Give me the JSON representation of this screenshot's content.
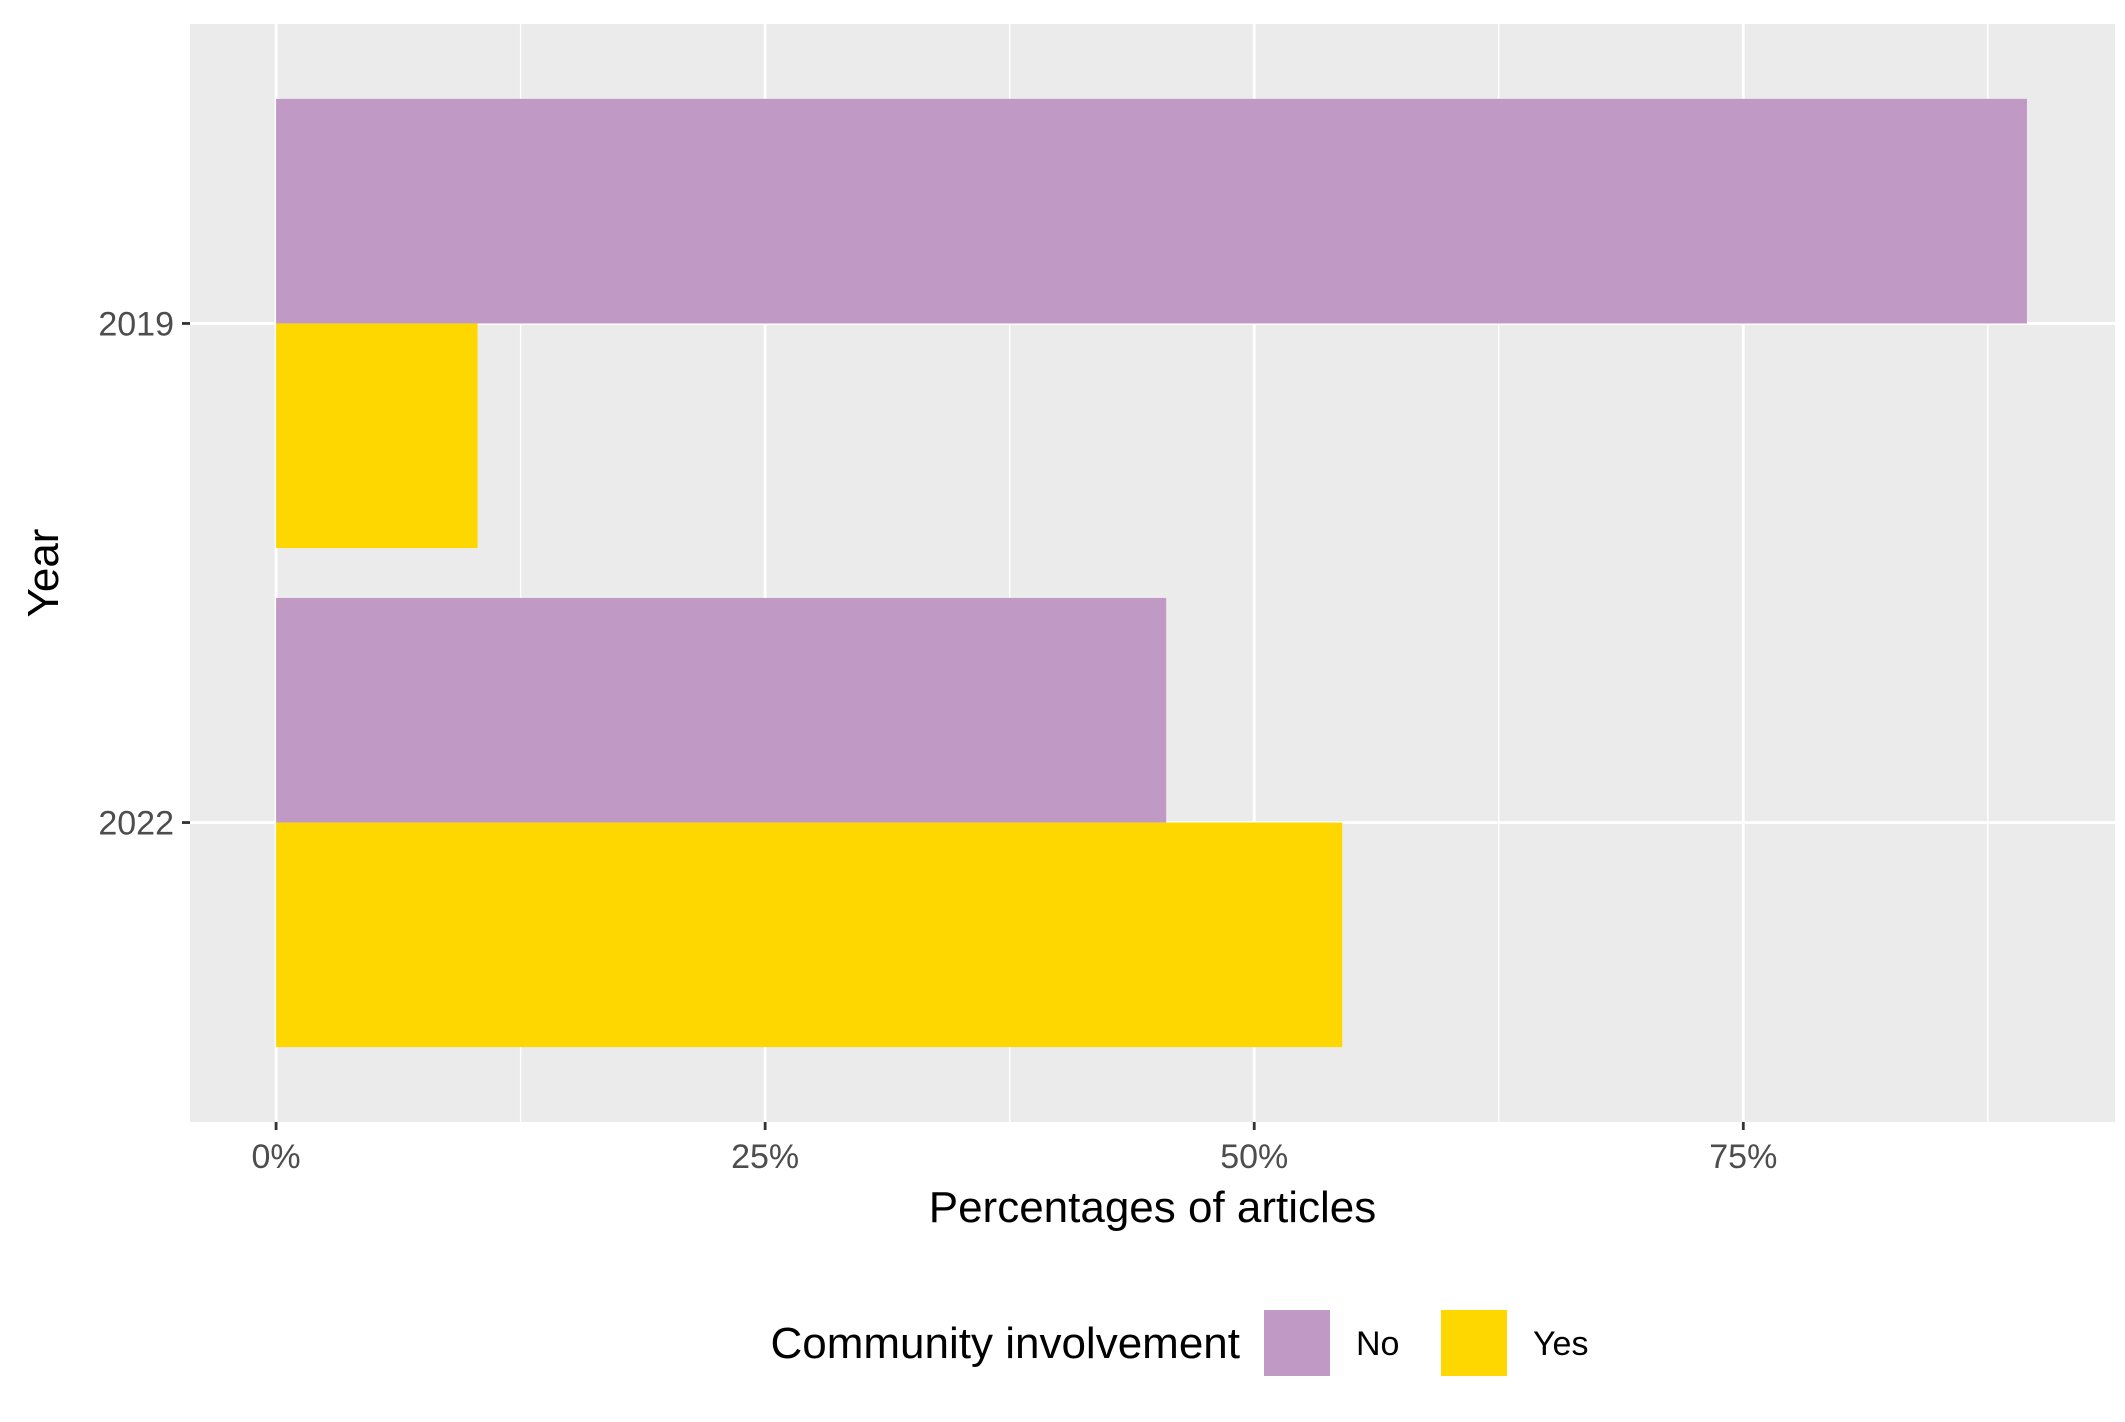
{
  "chart_data": {
    "type": "bar",
    "orientation": "horizontal",
    "categories": [
      "2019",
      "2022"
    ],
    "series": [
      {
        "name": "No",
        "values": [
          89.5,
          45.5
        ],
        "color": "#C09AC4"
      },
      {
        "name": "Yes",
        "values": [
          10.3,
          54.5
        ],
        "color": "#FFD700"
      }
    ],
    "xlabel": "Percentages of articles",
    "ylabel": "Year",
    "xlim": [
      -4.4,
      94.0
    ],
    "x_ticks": [
      0,
      25,
      50,
      75
    ],
    "x_tick_labels": [
      "0%",
      "25%",
      "50%",
      "75%"
    ],
    "grid": true,
    "panel_background": "#EBEBEB",
    "gridline_color": "#FFFFFF",
    "legend": {
      "title": "Community involvement",
      "position": "bottom",
      "items": [
        "No",
        "Yes"
      ]
    }
  }
}
